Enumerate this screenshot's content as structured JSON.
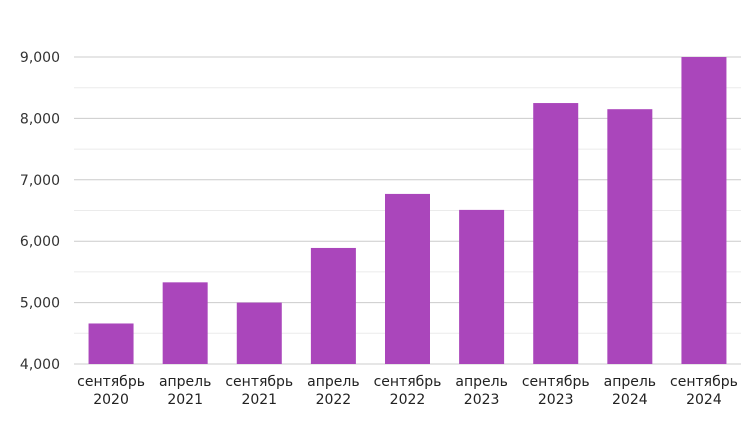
{
  "chart_data": {
    "type": "bar",
    "title": "",
    "xlabel": "",
    "ylabel": "",
    "categories": [
      [
        "сентябрь",
        "2020"
      ],
      [
        "апрель",
        "2021"
      ],
      [
        "сентябрь",
        "2021"
      ],
      [
        "апрель",
        "2022"
      ],
      [
        "сентябрь",
        "2022"
      ],
      [
        "апрель",
        "2023"
      ],
      [
        "сентябрь",
        "2023"
      ],
      [
        "апрель",
        "2024"
      ],
      [
        "сентябрь",
        "2024"
      ]
    ],
    "values": [
      4660,
      5330,
      5000,
      5890,
      6770,
      6510,
      8250,
      8150,
      9000
    ],
    "ylim": [
      4000,
      9000
    ],
    "y_ticks": [
      4000,
      5000,
      6000,
      7000,
      8000,
      9000
    ],
    "y_tick_labels": [
      "4,000",
      "5,000",
      "6,000",
      "7,000",
      "8,000",
      "9,000"
    ],
    "grid": true,
    "minor_grid": true,
    "legend": "none",
    "colors": {
      "bar": "#aa46bb",
      "major_grid": "#cccccc",
      "minor_grid": "#ebebeb",
      "axis": "#cccccc"
    }
  }
}
